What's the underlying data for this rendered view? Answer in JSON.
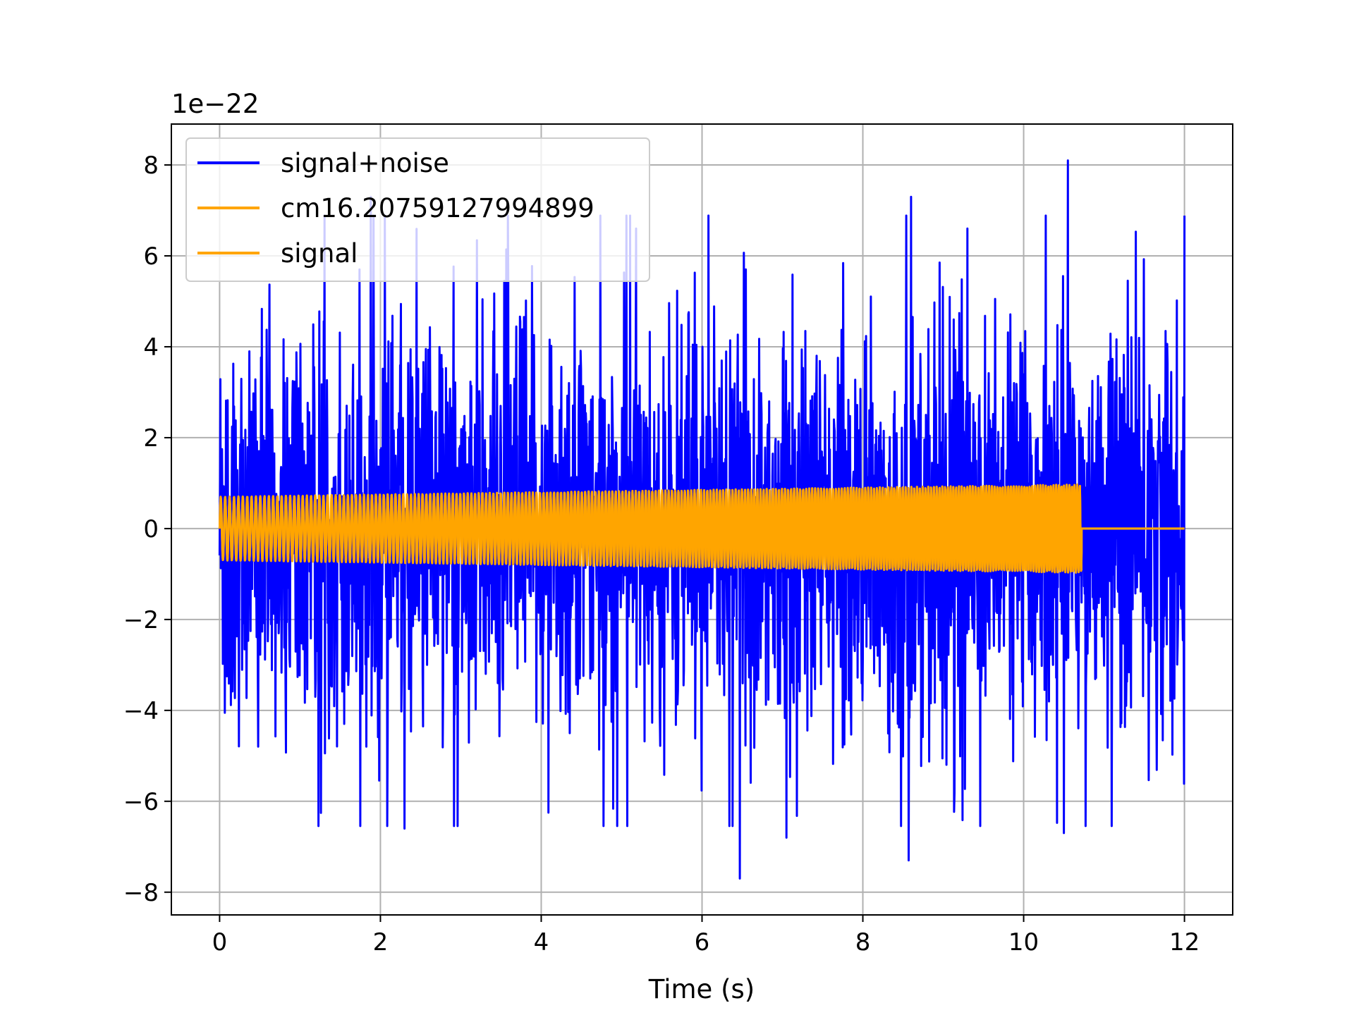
{
  "chart_data": {
    "type": "line",
    "title": "",
    "xlabel": "Time (s)",
    "ylabel": "",
    "y_offset_text": "1e−22",
    "y_scale_factor": 1e-22,
    "xlim": [
      -0.6,
      12.6
    ],
    "ylim": [
      -8.5,
      8.9
    ],
    "xticks": [
      0,
      2,
      4,
      6,
      8,
      10,
      12
    ],
    "xtick_labels": [
      "0",
      "2",
      "4",
      "6",
      "8",
      "10",
      "12"
    ],
    "yticks": [
      -8,
      -6,
      -4,
      -2,
      0,
      2,
      4,
      6,
      8
    ],
    "ytick_labels": [
      "−8",
      "−6",
      "−4",
      "−2",
      "0",
      "2",
      "4",
      "6",
      "8"
    ],
    "grid": true,
    "legend_position": "upper-left",
    "series": [
      {
        "name": "signal+noise",
        "color": "#0000ff",
        "style": "dense noisy oscillation",
        "x_range": [
          0,
          12
        ],
        "approx_envelope": [
          -7.7,
          8.1
        ],
        "notable_peaks": [
          {
            "x": 1.88,
            "y": 7.3
          },
          {
            "x": 5.18,
            "y": 6.6
          },
          {
            "x": 7.05,
            "y": 6.5
          },
          {
            "x": 8.6,
            "y": 7.3
          },
          {
            "x": 9.3,
            "y": 6.6
          },
          {
            "x": 10.55,
            "y": 8.1
          }
        ],
        "notable_troughs": [
          {
            "x": 2.3,
            "y": -6.6
          },
          {
            "x": 6.47,
            "y": -7.7
          },
          {
            "x": 7.05,
            "y": -6.8
          },
          {
            "x": 8.57,
            "y": -7.3
          },
          {
            "x": 10.5,
            "y": -6.7
          }
        ]
      },
      {
        "name": "cm16.20759127994899",
        "color": "#ffa500",
        "style": "chirp oscillation",
        "x_range": [
          0,
          10.72
        ],
        "amplitude_start": 0.7,
        "amplitude_end": 0.97,
        "then_zero_until": 12
      },
      {
        "name": "signal",
        "color": "#ffa500",
        "style": "chirp oscillation (overlaps previous series)",
        "x_range": [
          0,
          10.72
        ],
        "amplitude_start": 0.7,
        "amplitude_end": 0.97,
        "then_zero_until": 12
      }
    ]
  }
}
